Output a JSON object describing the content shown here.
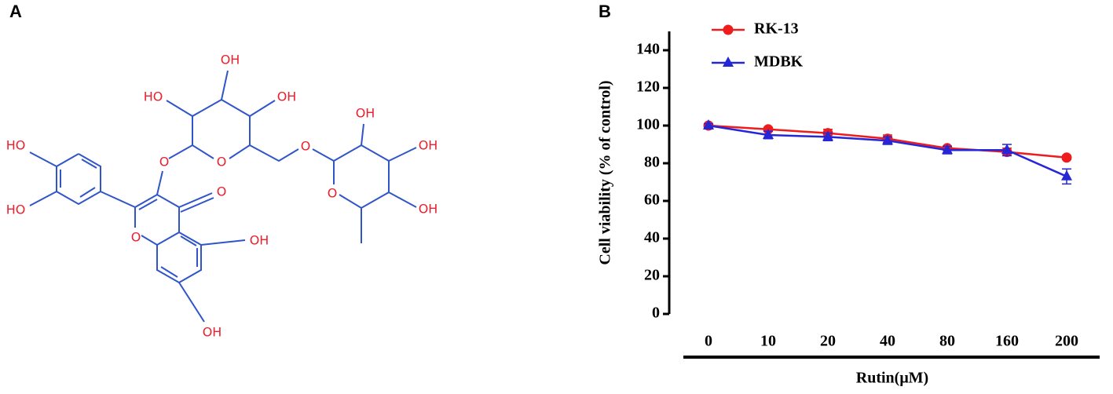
{
  "panel_labels": [
    "A",
    "B"
  ],
  "structure": {
    "atoms": [
      "HO",
      "HO",
      "O",
      "O",
      "O",
      "OH",
      "OH",
      "HO",
      "OH",
      "OH",
      "O",
      "O",
      "OH",
      "OH",
      "OH",
      "O"
    ]
  },
  "chart_data": {
    "type": "line",
    "ylabel": "Cell viability (% of control)",
    "xlabel": "Rutin(μM)",
    "categories": [
      "0",
      "10",
      "20",
      "40",
      "80",
      "160",
      "200"
    ],
    "series": [
      {
        "name": "RK-13",
        "color": "#ee1c1c",
        "marker": "circle",
        "values": [
          100,
          98,
          96,
          93,
          88,
          86,
          83
        ],
        "errors": [
          1,
          1,
          2,
          2,
          1,
          2,
          1
        ]
      },
      {
        "name": "MDBK",
        "color": "#2626d9",
        "marker": "triangle",
        "values": [
          100,
          95,
          94,
          92,
          87,
          87,
          73
        ],
        "errors": [
          1,
          2,
          2,
          2,
          2,
          3,
          4
        ]
      }
    ],
    "ylim": [
      0,
      150
    ],
    "yticks": [
      0,
      20,
      40,
      60,
      80,
      100,
      120,
      140
    ],
    "grid": false,
    "legend": "upper left"
  }
}
